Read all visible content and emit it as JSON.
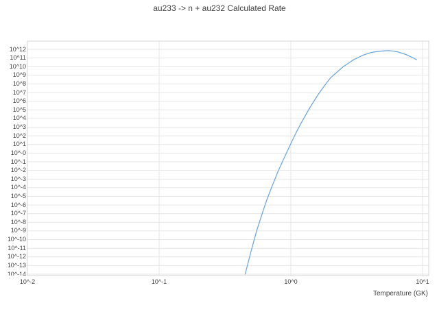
{
  "chart_data": {
    "type": "line",
    "title": "au233 -> n + au232 Calculated Rate",
    "xlabel": "Temperature (GK)",
    "ylabel": "",
    "x_scale": "log",
    "y_scale": "log",
    "xlim": [
      0.01,
      10
    ],
    "ylim": [
      "1e-14",
      "1e12"
    ],
    "grid": true,
    "legend": "none",
    "x_ticks": [
      {
        "value": 0.01,
        "label": "10^-2"
      },
      {
        "value": 0.1,
        "label": "10^-1"
      },
      {
        "value": 1,
        "label": "10^0"
      },
      {
        "value": 10,
        "label": "10^1"
      }
    ],
    "y_ticks": [
      {
        "exp": 12,
        "label": "10^12"
      },
      {
        "exp": 11,
        "label": "10^11"
      },
      {
        "exp": 10,
        "label": "10^10"
      },
      {
        "exp": 9,
        "label": "10^9"
      },
      {
        "exp": 8,
        "label": "10^8"
      },
      {
        "exp": 7,
        "label": "10^7"
      },
      {
        "exp": 6,
        "label": "10^6"
      },
      {
        "exp": 5,
        "label": "10^5"
      },
      {
        "exp": 4,
        "label": "10^4"
      },
      {
        "exp": 3,
        "label": "10^3"
      },
      {
        "exp": 2,
        "label": "10^2"
      },
      {
        "exp": 1,
        "label": "10^1"
      },
      {
        "exp": 0,
        "label": "10^-0"
      },
      {
        "exp": -1,
        "label": "10^-1"
      },
      {
        "exp": -2,
        "label": "10^-2"
      },
      {
        "exp": -3,
        "label": "10^-3"
      },
      {
        "exp": -4,
        "label": "10^-4"
      },
      {
        "exp": -5,
        "label": "10^-5"
      },
      {
        "exp": -6,
        "label": "10^-6"
      },
      {
        "exp": -7,
        "label": "10^-7"
      },
      {
        "exp": -8,
        "label": "10^-8"
      },
      {
        "exp": -9,
        "label": "10^-9"
      },
      {
        "exp": -10,
        "label": "10^-10"
      },
      {
        "exp": -11,
        "label": "10^-11"
      },
      {
        "exp": -12,
        "label": "10^-12"
      },
      {
        "exp": -13,
        "label": "10^-13"
      },
      {
        "exp": -14,
        "label": "10^-14"
      }
    ],
    "series": [
      {
        "color": "#6fa8dc",
        "x_GK": [
          0.45,
          0.5,
          0.55,
          0.6,
          0.65,
          0.7,
          0.8,
          0.9,
          1.0,
          1.1,
          1.2,
          1.4,
          1.6,
          1.8,
          2.0,
          2.5,
          3.0,
          3.5,
          4.0,
          4.5,
          5.0,
          5.5,
          6.0,
          6.5,
          7.0,
          7.5,
          8.0,
          8.5,
          9.0
        ],
        "log10_rate": [
          -14.0,
          -11.3,
          -9.0,
          -7.2,
          -5.6,
          -4.3,
          -2.1,
          -0.4,
          1.1,
          2.4,
          3.5,
          5.3,
          6.7,
          7.8,
          8.7,
          10.0,
          10.8,
          11.3,
          11.6,
          11.75,
          11.82,
          11.85,
          11.8,
          11.7,
          11.55,
          11.4,
          11.2,
          11.0,
          10.8
        ]
      }
    ]
  },
  "colors": {
    "background": "#ffffff",
    "grid": "#e6e6e6",
    "border": "#d4d4d4",
    "text": "#404040",
    "line": "#6fa8dc"
  }
}
